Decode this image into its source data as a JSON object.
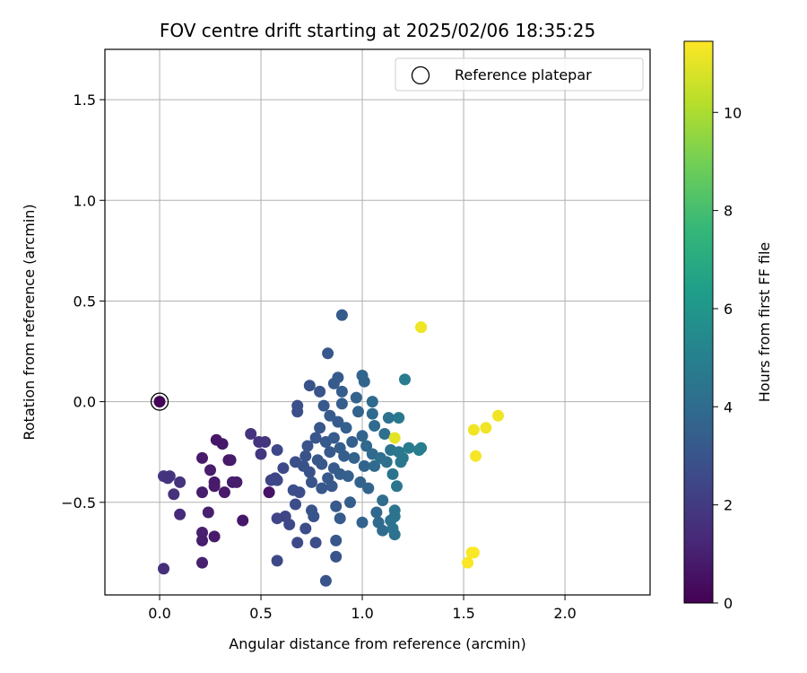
{
  "chart_data": {
    "type": "scatter",
    "title": "FOV centre drift starting at 2025/02/06 18:35:25",
    "xlabel": "Angular distance from reference (arcmin)",
    "ylabel": "Rotation from reference (arcmin)",
    "xlim": [
      -0.27,
      2.42
    ],
    "ylim": [
      -0.96,
      1.75
    ],
    "xticks": [
      0.0,
      0.5,
      1.0,
      1.5,
      2.0
    ],
    "xtick_labels": [
      "0.0",
      "0.5",
      "1.0",
      "1.5",
      "2.0"
    ],
    "yticks": [
      -0.5,
      0.0,
      0.5,
      1.0,
      1.5
    ],
    "ytick_labels": [
      "−0.5",
      "0.0",
      "0.5",
      "1.0",
      "1.5"
    ],
    "grid": true,
    "legend": {
      "position": "top-right",
      "entries": [
        "Reference platepar"
      ]
    },
    "colorbar": {
      "label": "Hours from first FF file",
      "range": [
        0,
        11.45
      ],
      "ticks": [
        0,
        2,
        4,
        6,
        8,
        10
      ],
      "tick_labels": [
        "0",
        "2",
        "4",
        "6",
        "8",
        "10"
      ],
      "colormap": "viridis"
    },
    "reference_point": {
      "x": 0.0,
      "y": 0.0
    },
    "points": [
      [
        0.0,
        0.0,
        0.1
      ],
      [
        0.02,
        -0.37,
        1.8
      ],
      [
        0.05,
        -0.37,
        1.8
      ],
      [
        0.04,
        -0.38,
        1.7
      ],
      [
        0.07,
        -0.46,
        1.6
      ],
      [
        0.1,
        -0.4,
        1.7
      ],
      [
        0.1,
        -0.56,
        1.4
      ],
      [
        0.02,
        -0.83,
        1.5
      ],
      [
        0.21,
        -0.28,
        0.8
      ],
      [
        0.21,
        -0.45,
        0.9
      ],
      [
        0.21,
        -0.65,
        1.0
      ],
      [
        0.21,
        -0.69,
        0.9
      ],
      [
        0.21,
        -0.8,
        1.0
      ],
      [
        0.24,
        -0.55,
        1.0
      ],
      [
        0.25,
        -0.34,
        0.9
      ],
      [
        0.27,
        -0.4,
        0.8
      ],
      [
        0.27,
        -0.42,
        0.8
      ],
      [
        0.28,
        -0.19,
        0.7
      ],
      [
        0.27,
        -0.67,
        0.8
      ],
      [
        0.31,
        -0.21,
        0.7
      ],
      [
        0.32,
        -0.45,
        0.8
      ],
      [
        0.34,
        -0.29,
        0.8
      ],
      [
        0.35,
        -0.29,
        0.8
      ],
      [
        0.36,
        -0.4,
        0.9
      ],
      [
        0.38,
        -0.4,
        0.9
      ],
      [
        0.41,
        -0.59,
        0.7
      ],
      [
        0.45,
        -0.16,
        1.7
      ],
      [
        0.49,
        -0.2,
        1.7
      ],
      [
        0.5,
        -0.26,
        1.8
      ],
      [
        0.52,
        -0.2,
        1.8
      ],
      [
        0.54,
        -0.45,
        0.6
      ],
      [
        0.55,
        -0.39,
        2.4
      ],
      [
        0.57,
        -0.38,
        2.4
      ],
      [
        0.58,
        -0.24,
        2.5
      ],
      [
        0.58,
        -0.39,
        2.5
      ],
      [
        0.58,
        -0.58,
        2.4
      ],
      [
        0.58,
        -0.79,
        2.5
      ],
      [
        0.61,
        -0.33,
        2.6
      ],
      [
        0.62,
        -0.57,
        2.4
      ],
      [
        0.64,
        -0.61,
        2.5
      ],
      [
        0.66,
        -0.44,
        2.8
      ],
      [
        0.67,
        -0.51,
        2.7
      ],
      [
        0.67,
        -0.3,
        2.8
      ],
      [
        0.69,
        -0.45,
        2.7
      ],
      [
        0.68,
        -0.05,
        2.8
      ],
      [
        0.68,
        -0.02,
        2.8
      ],
      [
        0.68,
        -0.7,
        2.6
      ],
      [
        0.71,
        -0.32,
        2.9
      ],
      [
        0.72,
        -0.27,
        2.9
      ],
      [
        0.72,
        -0.63,
        2.7
      ],
      [
        0.74,
        0.08,
        2.9
      ],
      [
        0.73,
        -0.22,
        3.0
      ],
      [
        0.74,
        -0.35,
        2.9
      ],
      [
        0.75,
        -0.4,
        3.0
      ],
      [
        0.75,
        -0.54,
        3.0
      ],
      [
        0.76,
        -0.57,
        3.0
      ],
      [
        0.77,
        -0.7,
        2.8
      ],
      [
        0.77,
        -0.18,
        3.1
      ],
      [
        0.78,
        -0.29,
        3.1
      ],
      [
        0.79,
        0.05,
        3.0
      ],
      [
        0.79,
        -0.13,
        3.1
      ],
      [
        0.8,
        -0.31,
        3.1
      ],
      [
        0.8,
        -0.43,
        3.1
      ],
      [
        0.81,
        -0.02,
        3.2
      ],
      [
        0.82,
        -0.2,
        3.2
      ],
      [
        0.83,
        0.24,
        3.1
      ],
      [
        0.83,
        -0.38,
        3.2
      ],
      [
        0.82,
        -0.89,
        3.0
      ],
      [
        0.84,
        -0.07,
        3.3
      ],
      [
        0.84,
        -0.25,
        3.2
      ],
      [
        0.85,
        -0.42,
        3.2
      ],
      [
        0.86,
        0.09,
        3.3
      ],
      [
        0.86,
        -0.18,
        3.3
      ],
      [
        0.86,
        -0.33,
        3.3
      ],
      [
        0.87,
        -0.52,
        3.2
      ],
      [
        0.87,
        -0.69,
        3.1
      ],
      [
        0.87,
        -0.77,
        3.0
      ],
      [
        0.88,
        0.12,
        3.3
      ],
      [
        0.88,
        -0.1,
        3.3
      ],
      [
        0.89,
        -0.23,
        3.4
      ],
      [
        0.89,
        -0.36,
        3.4
      ],
      [
        0.89,
        -0.58,
        3.3
      ],
      [
        0.9,
        0.43,
        3.3
      ],
      [
        0.9,
        0.05,
        3.4
      ],
      [
        0.9,
        -0.01,
        3.4
      ],
      [
        0.91,
        -0.27,
        3.4
      ],
      [
        0.92,
        -0.13,
        3.5
      ],
      [
        0.93,
        -0.37,
        3.5
      ],
      [
        0.94,
        -0.5,
        3.4
      ],
      [
        0.95,
        -0.2,
        3.5
      ],
      [
        0.96,
        -0.28,
        3.6
      ],
      [
        0.97,
        0.02,
        3.6
      ],
      [
        0.98,
        -0.05,
        3.6
      ],
      [
        0.99,
        -0.4,
        3.6
      ],
      [
        1.0,
        0.13,
        3.7
      ],
      [
        1.0,
        -0.17,
        3.7
      ],
      [
        1.0,
        -0.6,
        3.6
      ],
      [
        1.01,
        -0.32,
        3.7
      ],
      [
        1.01,
        0.1,
        3.7
      ],
      [
        1.02,
        -0.22,
        3.8
      ],
      [
        1.03,
        -0.43,
        3.7
      ],
      [
        1.05,
        0.0,
        3.9
      ],
      [
        1.05,
        -0.06,
        3.9
      ],
      [
        1.05,
        -0.26,
        3.9
      ],
      [
        1.06,
        -0.12,
        4.0
      ],
      [
        1.06,
        -0.32,
        3.9
      ],
      [
        1.07,
        -0.55,
        3.8
      ],
      [
        1.08,
        -0.6,
        3.9
      ],
      [
        1.09,
        -0.28,
        4.1
      ],
      [
        1.1,
        -0.49,
        4.1
      ],
      [
        1.1,
        -0.64,
        4.0
      ],
      [
        1.11,
        -0.16,
        4.2
      ],
      [
        1.12,
        -0.3,
        4.2
      ],
      [
        1.13,
        -0.08,
        4.3
      ],
      [
        1.14,
        -0.24,
        4.3
      ],
      [
        1.14,
        -0.59,
        4.3
      ],
      [
        1.15,
        -0.36,
        4.4
      ],
      [
        1.15,
        -0.63,
        4.4
      ],
      [
        1.16,
        -0.57,
        4.4
      ],
      [
        1.16,
        -0.54,
        4.4
      ],
      [
        1.16,
        -0.66,
        4.3
      ],
      [
        1.17,
        -0.42,
        4.5
      ],
      [
        1.18,
        -0.08,
        4.6
      ],
      [
        1.18,
        -0.25,
        4.6
      ],
      [
        1.19,
        -0.3,
        4.6
      ],
      [
        1.2,
        -0.28,
        4.6
      ],
      [
        1.21,
        0.11,
        4.8
      ],
      [
        1.23,
        -0.23,
        4.8
      ],
      [
        1.28,
        -0.24,
        4.9
      ],
      [
        1.29,
        -0.23,
        4.9
      ],
      [
        1.16,
        -0.18,
        11.0
      ],
      [
        1.29,
        0.37,
        11.3
      ],
      [
        1.29,
        0.37,
        11.2
      ],
      [
        1.52,
        -0.8,
        11.4
      ],
      [
        1.54,
        -0.75,
        11.4
      ],
      [
        1.55,
        -0.75,
        11.4
      ],
      [
        1.55,
        -0.14,
        11.2
      ],
      [
        1.56,
        -0.27,
        11.3
      ],
      [
        1.61,
        -0.13,
        11.2
      ],
      [
        1.67,
        -0.07,
        11.2
      ]
    ]
  },
  "colors": {
    "viridis": [
      "#440154",
      "#482878",
      "#3e4989",
      "#31688e",
      "#26828e",
      "#1f9e89",
      "#35b779",
      "#6ece58",
      "#b5de2b",
      "#fde725"
    ]
  }
}
